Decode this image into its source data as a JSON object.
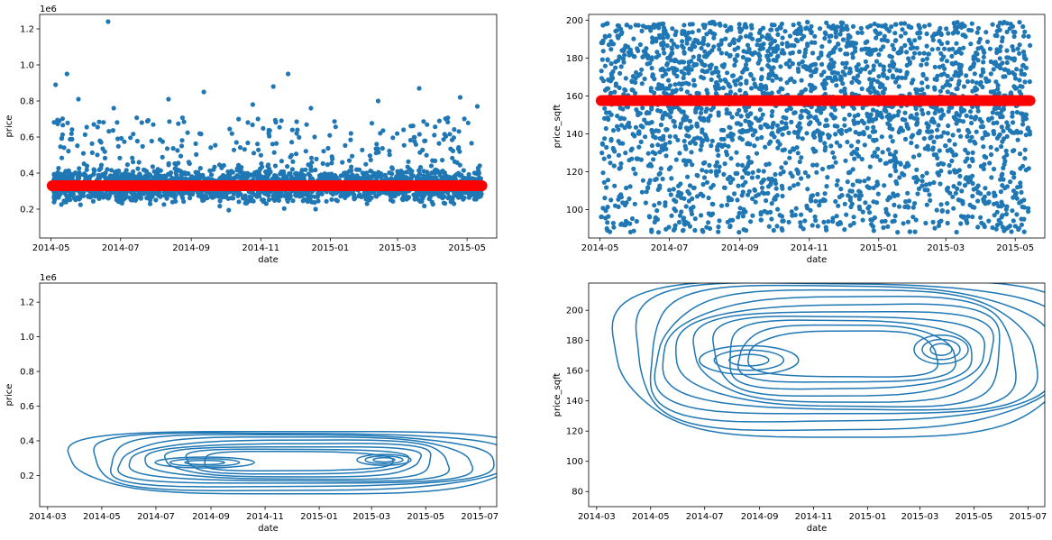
{
  "chart_data": [
    {
      "type": "scatter",
      "xlabel": "date",
      "ylabel": "price",
      "offset_text": "1e6",
      "x_ticks": [
        "2014-05",
        "2014-07",
        "2014-09",
        "2014-11",
        "2015-01",
        "2015-03",
        "2015-05"
      ],
      "y_ticks": [
        "0.2",
        "0.4",
        "0.6",
        "0.8",
        "1.0",
        "1.2"
      ],
      "x_range": [
        "2014-04-21",
        "2015-05-27"
      ],
      "ylim": [
        0.04,
        1.28
      ],
      "point_color": "#1f77b4",
      "trend_color": "#ff0000",
      "trend_value": 0.33,
      "date_span": [
        "2014-05-02",
        "2015-05-14"
      ],
      "value_range": [
        0.09,
        0.75
      ],
      "approx_points": 2400,
      "outliers": [
        {
          "x": "2014-06-20",
          "y": 1.24
        },
        {
          "x": "2014-05-15",
          "y": 0.95
        },
        {
          "x": "2014-11-25",
          "y": 0.95
        },
        {
          "x": "2014-05-05",
          "y": 0.89
        },
        {
          "x": "2014-11-12",
          "y": 0.88
        },
        {
          "x": "2015-03-20",
          "y": 0.87
        },
        {
          "x": "2014-09-12",
          "y": 0.85
        },
        {
          "x": "2014-05-25",
          "y": 0.81
        },
        {
          "x": "2014-08-12",
          "y": 0.81
        },
        {
          "x": "2015-02-12",
          "y": 0.8
        },
        {
          "x": "2015-04-25",
          "y": 0.82
        },
        {
          "x": "2014-06-25",
          "y": 0.76
        },
        {
          "x": "2014-10-25",
          "y": 0.78
        },
        {
          "x": "2014-12-15",
          "y": 0.76
        },
        {
          "x": "2015-05-10",
          "y": 0.77
        }
      ]
    },
    {
      "type": "scatter",
      "xlabel": "date",
      "ylabel": "price_sqft",
      "x_ticks": [
        "2014-05",
        "2014-07",
        "2014-09",
        "2014-11",
        "2015-01",
        "2015-03",
        "2015-05"
      ],
      "y_ticks": [
        "100",
        "120",
        "140",
        "160",
        "180",
        "200"
      ],
      "x_range": [
        "2014-04-21",
        "2015-05-27"
      ],
      "ylim": [
        85,
        203
      ],
      "point_color": "#1f77b4",
      "trend_color": "#ff0000",
      "trend_value": 157.5,
      "date_span": [
        "2014-05-02",
        "2015-05-14"
      ],
      "value_range": [
        88,
        199
      ],
      "approx_points": 2600
    },
    {
      "type": "contour",
      "xlabel": "date",
      "ylabel": "price",
      "offset_text": "1e6",
      "x_ticks": [
        "2014-03",
        "2014-05",
        "2014-07",
        "2014-09",
        "2014-11",
        "2015-01",
        "2015-03",
        "2015-05",
        "2015-07"
      ],
      "y_ticks": [
        "0.2",
        "0.4",
        "0.6",
        "0.8",
        "1.0",
        "1.2"
      ],
      "x_range": [
        "2014-02-20",
        "2015-07-20"
      ],
      "ylim": [
        0.02,
        1.31
      ],
      "line_color": "#1f77b4",
      "levels": 9,
      "density_peaks": [
        {
          "x": "2014-08-25",
          "y": 0.275
        },
        {
          "x": "2015-03-15",
          "y": 0.29
        }
      ]
    },
    {
      "type": "contour",
      "xlabel": "date",
      "ylabel": "price_sqft",
      "x_ticks": [
        "2014-03",
        "2014-05",
        "2014-07",
        "2014-09",
        "2014-11",
        "2015-01",
        "2015-03",
        "2015-05",
        "2015-07"
      ],
      "y_ticks": [
        "80",
        "100",
        "120",
        "140",
        "160",
        "180",
        "200"
      ],
      "x_range": [
        "2014-02-20",
        "2015-07-20"
      ],
      "ylim": [
        70,
        218
      ],
      "line_color": "#1f77b4",
      "levels": 11,
      "density_peaks": [
        {
          "x": "2014-08-20",
          "y": 167
        },
        {
          "x": "2015-03-25",
          "y": 174
        }
      ]
    }
  ]
}
